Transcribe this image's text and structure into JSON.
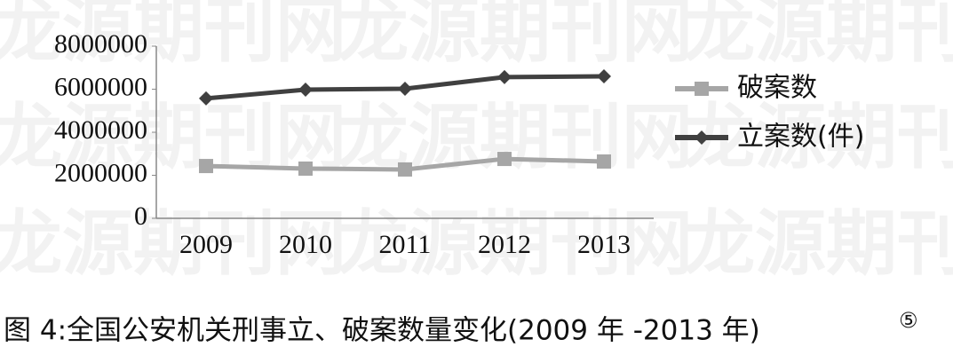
{
  "chart_data": {
    "type": "line",
    "watermark": "龙源期刊网",
    "caption": "图 4:全国公安机关刑事立、破案数量变化(2009 年 -2013 年)",
    "caption_note": "⑤",
    "categories": [
      "2009",
      "2010",
      "2011",
      "2012",
      "2013"
    ],
    "series": [
      {
        "name": "破案数",
        "color": "#a6a6a6",
        "marker": "square",
        "values": [
          2430000,
          2310000,
          2270000,
          2760000,
          2640000
        ]
      },
      {
        "name": "立案数(件)",
        "color": "#404040",
        "marker": "diamond",
        "values": [
          5570000,
          5980000,
          6020000,
          6560000,
          6600000
        ]
      }
    ],
    "ylim": [
      0,
      8000000
    ],
    "yticks": [
      0,
      2000000,
      4000000,
      6000000,
      8000000
    ],
    "grid": false
  }
}
